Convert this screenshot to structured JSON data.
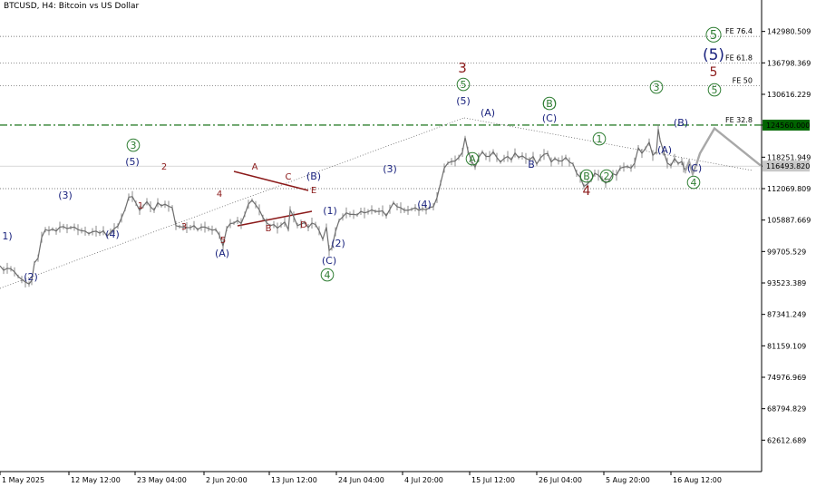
{
  "title": "BTCUSD, H4:  Bitcoin vs US Dollar",
  "colors": {
    "background": "#ffffff",
    "price": "#6e6e6e",
    "navy": "#1a237e",
    "darkred": "#8b1a1a",
    "green": "#2e7d32",
    "dashed_level": "#006400",
    "projection": "#a8a8a8",
    "current_price_box": "#c8c8c8",
    "level_box": "#006400"
  },
  "chart_data": {
    "type": "line",
    "title": "BTCUSD, H4:  Bitcoin vs US Dollar",
    "xlabel": "",
    "ylabel": "",
    "ylim": [
      56430,
      149160
    ],
    "grid": false,
    "y_ticks": [
      "142980.509",
      "136798.369",
      "130616.229",
      "124560.000",
      "118251.949",
      "116493.820",
      "112069.809",
      "105887.669",
      "99705.529",
      "93523.389",
      "87341.249",
      "81159.109",
      "74976.969",
      "68794.829",
      "62612.689"
    ],
    "x_ticks": [
      "1 May 2025",
      "12 May 12:00",
      "23 May 04:00",
      "2 Jun 20:00",
      "13 Jun 12:00",
      "24 Jun 04:00",
      "4 Jul 20:00",
      "15 Jul 12:00",
      "26 Jul 04:00",
      "5 Aug 20:00",
      "16 Aug 12:00"
    ],
    "series": [
      {
        "values": [
          [
            0,
            96900
          ],
          [
            4,
            96000
          ],
          [
            8,
            96400
          ],
          [
            12,
            96300
          ],
          [
            16,
            95700
          ],
          [
            20,
            94800
          ],
          [
            24,
            94200
          ],
          [
            28,
            93700
          ],
          [
            32,
            93300
          ],
          [
            35,
            94000
          ],
          [
            38,
            97500
          ],
          [
            42,
            98400
          ],
          [
            46,
            102500
          ],
          [
            50,
            104000
          ],
          [
            54,
            103800
          ],
          [
            58,
            104100
          ],
          [
            62,
            103700
          ],
          [
            66,
            104500
          ],
          [
            70,
            104600
          ],
          [
            74,
            104200
          ],
          [
            78,
            104400
          ],
          [
            82,
            104500
          ],
          [
            86,
            104000
          ],
          [
            90,
            103800
          ],
          [
            94,
            103700
          ],
          [
            98,
            103200
          ],
          [
            102,
            103600
          ],
          [
            106,
            103700
          ],
          [
            110,
            103300
          ],
          [
            114,
            103800
          ],
          [
            118,
            102700
          ],
          [
            122,
            103500
          ],
          [
            126,
            104200
          ],
          [
            130,
            104700
          ],
          [
            134,
            106300
          ],
          [
            138,
            108000
          ],
          [
            142,
            110400
          ],
          [
            146,
            110500
          ],
          [
            150,
            109200
          ],
          [
            154,
            107800
          ],
          [
            158,
            108600
          ],
          [
            162,
            109500
          ],
          [
            166,
            108500
          ],
          [
            170,
            107800
          ],
          [
            174,
            109300
          ],
          [
            178,
            108700
          ],
          [
            182,
            109000
          ],
          [
            186,
            108600
          ],
          [
            190,
            108300
          ],
          [
            194,
            104800
          ],
          [
            198,
            104600
          ],
          [
            202,
            104500
          ],
          [
            206,
            104400
          ],
          [
            210,
            104400
          ],
          [
            214,
            104800
          ],
          [
            218,
            104000
          ],
          [
            222,
            104500
          ],
          [
            226,
            104500
          ],
          [
            230,
            104200
          ],
          [
            234,
            103900
          ],
          [
            238,
            104000
          ],
          [
            242,
            102900
          ],
          [
            246,
            100800
          ],
          [
            250,
            104200
          ],
          [
            254,
            105200
          ],
          [
            258,
            105300
          ],
          [
            262,
            105800
          ],
          [
            266,
            105200
          ],
          [
            270,
            107000
          ],
          [
            274,
            109000
          ],
          [
            278,
            109800
          ],
          [
            282,
            108900
          ],
          [
            286,
            107900
          ],
          [
            290,
            106400
          ],
          [
            294,
            105400
          ],
          [
            298,
            104800
          ],
          [
            302,
            105000
          ],
          [
            306,
            104300
          ],
          [
            310,
            104900
          ],
          [
            314,
            105500
          ],
          [
            318,
            104000
          ],
          [
            320,
            107900
          ],
          [
            324,
            106500
          ],
          [
            328,
            104800
          ],
          [
            332,
            105100
          ],
          [
            336,
            105400
          ],
          [
            340,
            104400
          ],
          [
            344,
            105300
          ],
          [
            348,
            105000
          ],
          [
            352,
            103800
          ],
          [
            356,
            102100
          ],
          [
            360,
            104500
          ],
          [
            363,
            99900
          ],
          [
            366,
            100400
          ],
          [
            370,
            103600
          ],
          [
            374,
            105800
          ],
          [
            378,
            106500
          ],
          [
            382,
            107300
          ],
          [
            386,
            107000
          ],
          [
            390,
            107000
          ],
          [
            394,
            106900
          ],
          [
            398,
            107600
          ],
          [
            402,
            107300
          ],
          [
            406,
            107500
          ],
          [
            410,
            107900
          ],
          [
            414,
            107600
          ],
          [
            418,
            107600
          ],
          [
            422,
            107700
          ],
          [
            426,
            106700
          ],
          [
            430,
            108000
          ],
          [
            434,
            109300
          ],
          [
            438,
            108500
          ],
          [
            442,
            108300
          ],
          [
            446,
            107800
          ],
          [
            450,
            107800
          ],
          [
            454,
            108000
          ],
          [
            458,
            108300
          ],
          [
            462,
            107800
          ],
          [
            466,
            108100
          ],
          [
            470,
            107900
          ],
          [
            474,
            108400
          ],
          [
            478,
            108500
          ],
          [
            482,
            110300
          ],
          [
            486,
            113200
          ],
          [
            490,
            116100
          ],
          [
            494,
            117100
          ],
          [
            498,
            117400
          ],
          [
            502,
            117500
          ],
          [
            506,
            118200
          ],
          [
            510,
            119200
          ],
          [
            513,
            122100
          ],
          [
            516,
            119600
          ],
          [
            520,
            117500
          ],
          [
            524,
            116300
          ],
          [
            528,
            118200
          ],
          [
            532,
            119300
          ],
          [
            536,
            118400
          ],
          [
            540,
            118400
          ],
          [
            544,
            119300
          ],
          [
            548,
            118200
          ],
          [
            552,
            117300
          ],
          [
            556,
            118000
          ],
          [
            560,
            118400
          ],
          [
            564,
            117700
          ],
          [
            568,
            119100
          ],
          [
            572,
            118200
          ],
          [
            576,
            118500
          ],
          [
            580,
            118000
          ],
          [
            584,
            117700
          ],
          [
            588,
            118400
          ],
          [
            592,
            116900
          ],
          [
            596,
            118100
          ],
          [
            600,
            118800
          ],
          [
            604,
            119000
          ],
          [
            608,
            117300
          ],
          [
            612,
            118000
          ],
          [
            616,
            117500
          ],
          [
            620,
            117500
          ],
          [
            624,
            118200
          ],
          [
            628,
            117300
          ],
          [
            632,
            116900
          ],
          [
            636,
            115100
          ],
          [
            640,
            114300
          ],
          [
            644,
            112500
          ],
          [
            648,
            113000
          ],
          [
            652,
            113700
          ],
          [
            656,
            115100
          ],
          [
            660,
            114700
          ],
          [
            664,
            114000
          ],
          [
            668,
            113100
          ],
          [
            672,
            113700
          ],
          [
            676,
            115000
          ],
          [
            680,
            114700
          ],
          [
            684,
            116100
          ],
          [
            688,
            116300
          ],
          [
            692,
            116400
          ],
          [
            696,
            116100
          ],
          [
            700,
            117100
          ],
          [
            704,
            120100
          ],
          [
            708,
            119000
          ],
          [
            712,
            120000
          ],
          [
            716,
            121200
          ],
          [
            720,
            118600
          ],
          [
            724,
            119300
          ],
          [
            726,
            123800
          ],
          [
            728,
            121600
          ],
          [
            732,
            119300
          ],
          [
            736,
            117100
          ],
          [
            740,
            116600
          ],
          [
            744,
            118000
          ],
          [
            748,
            117000
          ],
          [
            752,
            117400
          ],
          [
            754,
            116300
          ],
          [
            756,
            115600
          ]
        ]
      },
      {
        "values": [
          [
            756,
            115600
          ],
          [
            760,
            117400
          ],
          [
            764,
            115000
          ],
          [
            768,
            116800
          ],
          [
            772,
            119000
          ],
          [
            788,
            123900
          ],
          [
            839,
            116600
          ]
        ]
      }
    ],
    "reference_lines": [
      {
        "label": "FE 76.4",
        "value": 142000
      },
      {
        "label": "FE 61.8",
        "value": 136800
      },
      {
        "label": "FE 50",
        "value": 132300
      },
      {
        "label": "FE 32.8",
        "value": 124560
      },
      {
        "label": "",
        "value": 116493.82
      },
      {
        "label": "",
        "value": 112069.809
      }
    ],
    "price_boxes": [
      "124560.000",
      "116493.820"
    ],
    "wave_labels": [
      "1)",
      "(2)",
      "(3)",
      "(4)",
      "(5)",
      "3",
      "1",
      "2",
      "3",
      "4",
      "5",
      "(A)",
      "A",
      "B",
      "C",
      "D",
      "E",
      "(B)",
      "(1)",
      "(2)",
      "(C)",
      "4",
      "(3)",
      "(4)",
      "(5)",
      "5",
      "3",
      "(A)",
      "A",
      "(B)",
      "(C)",
      "B",
      "C",
      "(B)",
      "1",
      "2",
      "C",
      "4",
      "3",
      "(A)",
      "(B)",
      "(C)",
      "4",
      "(5)",
      "5",
      "5",
      "5"
    ]
  }
}
